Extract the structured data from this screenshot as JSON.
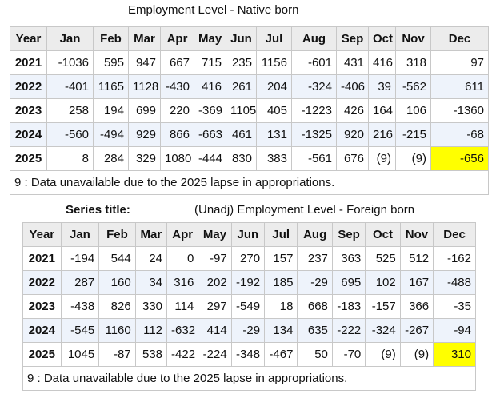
{
  "tables": [
    {
      "title": "Employment Level - Native born",
      "columns": [
        "Year",
        "Jan",
        "Feb",
        "Mar",
        "Apr",
        "May",
        "Jun",
        "Jul",
        "Aug",
        "Sep",
        "Oct",
        "Nov",
        "Dec"
      ],
      "rows": [
        [
          "2021",
          "-1036",
          "595",
          "947",
          "667",
          "715",
          "235",
          "1156",
          "-601",
          "431",
          "416",
          "318",
          "97"
        ],
        [
          "2022",
          "-401",
          "1165",
          "1128",
          "-430",
          "416",
          "261",
          "204",
          "-324",
          "-406",
          "39",
          "-562",
          "611"
        ],
        [
          "2023",
          "258",
          "194",
          "699",
          "220",
          "-369",
          "1105",
          "405",
          "-1223",
          "426",
          "164",
          "106",
          "-1360"
        ],
        [
          "2024",
          "-560",
          "-494",
          "929",
          "866",
          "-663",
          "461",
          "131",
          "-1325",
          "920",
          "216",
          "-215",
          "-68"
        ],
        [
          "2025",
          "8",
          "284",
          "329",
          "1080",
          "-444",
          "830",
          "383",
          "-561",
          "676",
          "(9)",
          "(9)",
          "-656"
        ]
      ],
      "highlighted_cells": [
        [
          4,
          12
        ]
      ],
      "footnote": "9 : Data unavailable due to the 2025 lapse in appropriations."
    },
    {
      "label": "Series title:",
      "title": "(Unadj) Employment Level - Foreign born",
      "columns": [
        "Year",
        "Jan",
        "Feb",
        "Mar",
        "Apr",
        "May",
        "Jun",
        "Jul",
        "Aug",
        "Sep",
        "Oct",
        "Nov",
        "Dec"
      ],
      "rows": [
        [
          "2021",
          "-194",
          "544",
          "24",
          "0",
          "-97",
          "270",
          "157",
          "237",
          "363",
          "525",
          "512",
          "-162"
        ],
        [
          "2022",
          "287",
          "160",
          "34",
          "316",
          "202",
          "-192",
          "185",
          "-29",
          "695",
          "102",
          "167",
          "-488"
        ],
        [
          "2023",
          "-438",
          "826",
          "330",
          "114",
          "297",
          "-549",
          "18",
          "668",
          "-183",
          "-157",
          "366",
          "-35"
        ],
        [
          "2024",
          "-545",
          "1160",
          "112",
          "-632",
          "414",
          "-29",
          "134",
          "635",
          "-222",
          "-324",
          "-267",
          "-94"
        ],
        [
          "2025",
          "1045",
          "-87",
          "538",
          "-422",
          "-224",
          "-348",
          "-467",
          "50",
          "-70",
          "(9)",
          "(9)",
          "310"
        ]
      ],
      "highlighted_cells": [
        [
          4,
          12
        ]
      ],
      "footnote": "9 : Data unavailable due to the 2025 lapse in appropriations."
    }
  ],
  "highlight_color": "#ffff00"
}
